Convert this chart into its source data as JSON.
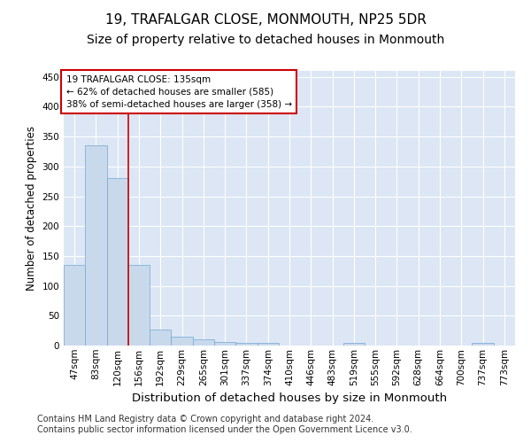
{
  "title": "19, TRAFALGAR CLOSE, MONMOUTH, NP25 5DR",
  "subtitle": "Size of property relative to detached houses in Monmouth",
  "xlabel": "Distribution of detached houses by size in Monmouth",
  "ylabel": "Number of detached properties",
  "bar_values": [
    135,
    335,
    280,
    135,
    27,
    15,
    11,
    6,
    5,
    4,
    0,
    0,
    0,
    5,
    0,
    0,
    0,
    0,
    0,
    4,
    0
  ],
  "bin_labels": [
    "47sqm",
    "83sqm",
    "120sqm",
    "156sqm",
    "192sqm",
    "229sqm",
    "265sqm",
    "301sqm",
    "337sqm",
    "374sqm",
    "410sqm",
    "446sqm",
    "483sqm",
    "519sqm",
    "555sqm",
    "592sqm",
    "628sqm",
    "664sqm",
    "700sqm",
    "737sqm",
    "773sqm"
  ],
  "bar_color": "#c9d9ec",
  "bar_edgecolor": "#6fa8d0",
  "background_color": "#dce6f5",
  "grid_color": "#ffffff",
  "red_line_x": 2.5,
  "annotation_box": {
    "text_lines": [
      "19 TRAFALGAR CLOSE: 135sqm",
      "← 62% of detached houses are smaller (585)",
      "38% of semi-detached houses are larger (358) →"
    ],
    "box_color": "#ffffff",
    "border_color": "#cc0000"
  },
  "ylim": [
    0,
    460
  ],
  "yticks": [
    0,
    50,
    100,
    150,
    200,
    250,
    300,
    350,
    400,
    450
  ],
  "footer_text": "Contains HM Land Registry data © Crown copyright and database right 2024.\nContains public sector information licensed under the Open Government Licence v3.0.",
  "title_fontsize": 11,
  "subtitle_fontsize": 10,
  "xlabel_fontsize": 9.5,
  "ylabel_fontsize": 8.5,
  "tick_fontsize": 7.5,
  "footer_fontsize": 7
}
